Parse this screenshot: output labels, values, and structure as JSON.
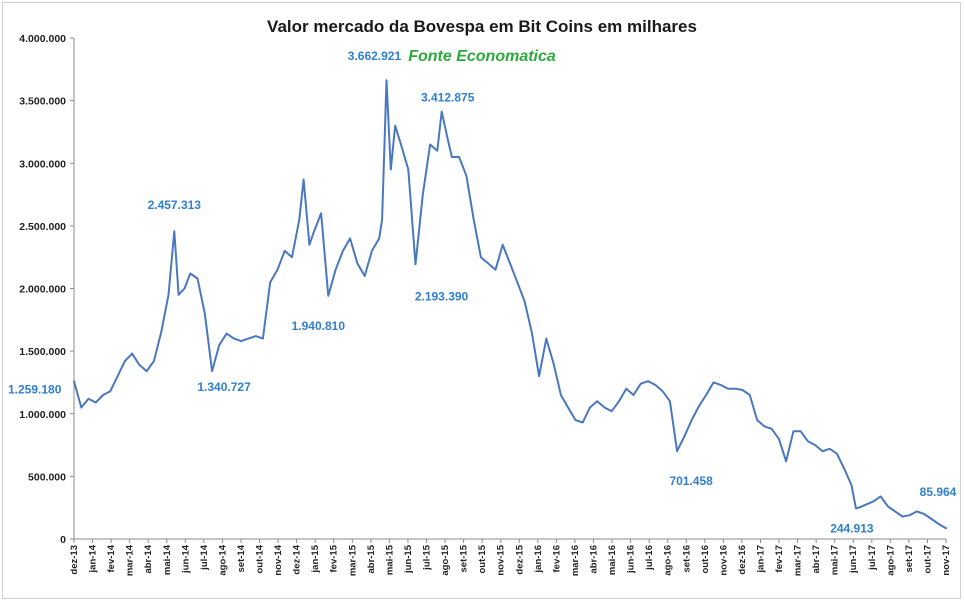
{
  "chart_data": {
    "type": "line",
    "title": "Valor mercado da Bovespa em Bit Coins em milhares",
    "subtitle": "Fonte Economatica",
    "xlabel": "",
    "ylabel": "",
    "ylim": [
      0,
      4000000
    ],
    "yticks": [
      0,
      500000,
      1000000,
      1500000,
      2000000,
      2500000,
      3000000,
      3500000,
      4000000
    ],
    "ytick_labels": [
      "0",
      "500.000",
      "1.000.000",
      "1.500.000",
      "2.000.000",
      "2.500.000",
      "3.000.000",
      "3.500.000",
      "4.000.000"
    ],
    "x": [
      "dez-13",
      "jan-14",
      "fev-14",
      "mar-14",
      "abr-14",
      "mai-14",
      "jun-14",
      "jul-14",
      "ago-14",
      "set-14",
      "out-14",
      "nov-14",
      "dez-14",
      "jan-15",
      "fev-15",
      "mar-15",
      "abr-15",
      "mai-15",
      "jun-15",
      "jul-15",
      "ago-15",
      "set-15",
      "out-15",
      "nov-15",
      "dez-15",
      "jan-16",
      "fev-16",
      "mar-16",
      "abr-16",
      "mai-16",
      "jun-16",
      "jul-16",
      "ago-16",
      "set-16",
      "out-16",
      "nov-16",
      "dez-16",
      "jan-17",
      "fev-17",
      "mar-17",
      "abr-17",
      "mai-17",
      "jun-17",
      "jul-17",
      "ago-17",
      "set-17",
      "out-17",
      "nov-17"
    ],
    "grid": false,
    "legend": "none",
    "color": "#4a78c0",
    "series": [
      {
        "values": [
          [
            0,
            1259180
          ],
          [
            0.25,
            1050000
          ],
          [
            0.5,
            1120000
          ],
          [
            0.75,
            1090000
          ],
          [
            1.0,
            1150000
          ],
          [
            1.25,
            1180000
          ],
          [
            1.5,
            1300000
          ],
          [
            1.75,
            1420000
          ],
          [
            2.0,
            1480000
          ],
          [
            2.25,
            1390000
          ],
          [
            2.5,
            1340000
          ],
          [
            2.75,
            1420000
          ],
          [
            3.0,
            1650000
          ],
          [
            3.25,
            1950000
          ],
          [
            3.45,
            2457313
          ],
          [
            3.6,
            1950000
          ],
          [
            3.8,
            2000000
          ],
          [
            4.0,
            2120000
          ],
          [
            4.25,
            2080000
          ],
          [
            4.5,
            1800000
          ],
          [
            4.75,
            1340727
          ],
          [
            5.0,
            1550000
          ],
          [
            5.25,
            1640000
          ],
          [
            5.5,
            1600000
          ],
          [
            5.75,
            1580000
          ],
          [
            6.0,
            1600000
          ],
          [
            6.25,
            1620000
          ],
          [
            6.5,
            1600000
          ],
          [
            6.75,
            2050000
          ],
          [
            7.0,
            2150000
          ],
          [
            7.25,
            2300000
          ],
          [
            7.5,
            2250000
          ],
          [
            7.75,
            2550000
          ],
          [
            7.9,
            2870000
          ],
          [
            8.1,
            2350000
          ],
          [
            8.25,
            2450000
          ],
          [
            8.5,
            2600000
          ],
          [
            8.75,
            1940810
          ],
          [
            9.0,
            2150000
          ],
          [
            9.25,
            2300000
          ],
          [
            9.5,
            2400000
          ],
          [
            9.75,
            2200000
          ],
          [
            10.0,
            2100000
          ],
          [
            10.25,
            2300000
          ],
          [
            10.5,
            2400000
          ],
          [
            10.6,
            2550000
          ],
          [
            10.75,
            3662921
          ],
          [
            10.9,
            2950000
          ],
          [
            11.05,
            3300000
          ],
          [
            11.25,
            3150000
          ],
          [
            11.5,
            2950000
          ],
          [
            11.75,
            2193390
          ],
          [
            12.0,
            2750000
          ],
          [
            12.25,
            3150000
          ],
          [
            12.5,
            3100000
          ],
          [
            12.65,
            3412875
          ],
          [
            12.85,
            3200000
          ],
          [
            13.0,
            3050000
          ],
          [
            13.25,
            3050000
          ],
          [
            13.5,
            2900000
          ],
          [
            13.75,
            2550000
          ],
          [
            14.0,
            2250000
          ],
          [
            14.25,
            2200000
          ],
          [
            14.5,
            2150000
          ],
          [
            14.75,
            2350000
          ],
          [
            15.0,
            2200000
          ],
          [
            15.25,
            2050000
          ],
          [
            15.5,
            1900000
          ],
          [
            15.75,
            1650000
          ],
          [
            16.0,
            1300000
          ],
          [
            16.25,
            1600000
          ],
          [
            16.5,
            1400000
          ],
          [
            16.75,
            1150000
          ],
          [
            17.0,
            1050000
          ],
          [
            17.25,
            950000
          ],
          [
            17.5,
            930000
          ],
          [
            17.75,
            1050000
          ],
          [
            18.0,
            1100000
          ],
          [
            18.25,
            1050000
          ],
          [
            18.5,
            1020000
          ],
          [
            18.75,
            1100000
          ],
          [
            19.0,
            1200000
          ],
          [
            19.25,
            1150000
          ],
          [
            19.5,
            1240000
          ],
          [
            19.75,
            1260000
          ],
          [
            20.0,
            1230000
          ],
          [
            20.25,
            1180000
          ],
          [
            20.5,
            1100000
          ],
          [
            20.75,
            701458
          ],
          [
            21.0,
            820000
          ],
          [
            21.25,
            950000
          ],
          [
            21.5,
            1060000
          ],
          [
            21.75,
            1150000
          ],
          [
            22.0,
            1250000
          ],
          [
            22.25,
            1230000
          ],
          [
            22.5,
            1200000
          ],
          [
            22.75,
            1200000
          ],
          [
            23.0,
            1190000
          ],
          [
            23.25,
            1150000
          ],
          [
            23.5,
            950000
          ],
          [
            23.75,
            900000
          ],
          [
            24.0,
            880000
          ],
          [
            24.25,
            800000
          ],
          [
            24.5,
            620000
          ],
          [
            24.75,
            860000
          ],
          [
            25.0,
            860000
          ],
          [
            25.25,
            780000
          ],
          [
            25.5,
            750000
          ],
          [
            25.75,
            700000
          ],
          [
            26.0,
            720000
          ],
          [
            26.25,
            680000
          ],
          [
            26.5,
            560000
          ],
          [
            26.75,
            430000
          ],
          [
            26.9,
            244913
          ],
          [
            27.0,
            250000
          ],
          [
            27.25,
            275000
          ],
          [
            27.5,
            300000
          ],
          [
            27.75,
            340000
          ],
          [
            28.0,
            260000
          ],
          [
            28.25,
            220000
          ],
          [
            28.5,
            180000
          ],
          [
            28.75,
            190000
          ],
          [
            29.0,
            220000
          ],
          [
            29.25,
            200000
          ],
          [
            29.5,
            160000
          ],
          [
            29.75,
            120000
          ],
          [
            30.0,
            85964
          ]
        ]
      }
    ],
    "annotations": [
      {
        "label": "1.259.180",
        "x": 0,
        "y": 1259180
      },
      {
        "label": "2.457.313",
        "x": 3.45,
        "y": 2457313
      },
      {
        "label": "1.340.727",
        "x": 4.75,
        "y": 1340727
      },
      {
        "label": "1.940.810",
        "x": 8.75,
        "y": 1940810
      },
      {
        "label": "3.662.921",
        "x": 10.75,
        "y": 3662921
      },
      {
        "label": "2.193.390",
        "x": 11.75,
        "y": 2193390
      },
      {
        "label": "3.412.875",
        "x": 12.65,
        "y": 3412875
      },
      {
        "label": "701.458",
        "x": 20.75,
        "y": 701458
      },
      {
        "label": "244.913",
        "x": 26.9,
        "y": 244913
      },
      {
        "label": "85.964",
        "x": 30.0,
        "y": 85964
      }
    ]
  }
}
